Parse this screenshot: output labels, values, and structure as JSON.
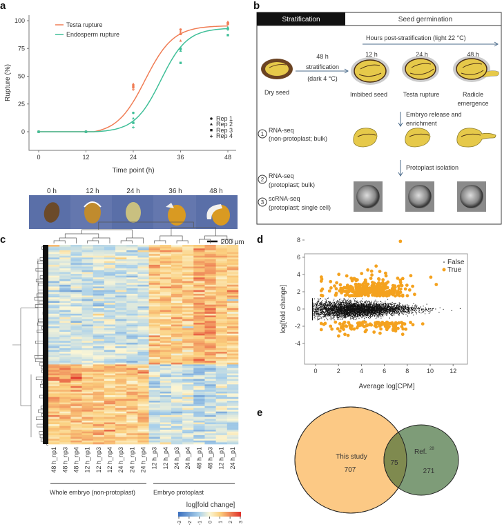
{
  "panels": {
    "a": {
      "label": "a",
      "chart": {
        "type": "line",
        "xlabel": "Time point (h)",
        "ylabel": "Rupture (%)",
        "x_ticks": [
          "0",
          "12",
          "24",
          "36",
          "48"
        ],
        "y_ticks": [
          "0",
          "25",
          "50",
          "75",
          "100"
        ],
        "legend": [
          "Testa rupture",
          "Endosperm rupture"
        ],
        "rep_legend": [
          "Rep 1",
          "Rep 2",
          "Rep 3",
          "Rep 4"
        ],
        "colors": {
          "testa": "#f07d55",
          "endosperm": "#3fbf98"
        }
      },
      "photo_labels": [
        "0 h",
        "12 h",
        "24 h",
        "36 h",
        "48 h"
      ],
      "scale_bar": "200 μm"
    },
    "b": {
      "label": "b",
      "header_stratification": "Stratification",
      "header_germination": "Seed germination",
      "hours_label": "Hours post-stratification (light 22 °C)",
      "strat_1": "48 h",
      "strat_2": "stratification",
      "strat_3": "(dark 4 °C)",
      "t12": "12 h",
      "t24": "24 h",
      "t48": "48 h",
      "dry_seed": "Dry seed",
      "imbibed": "Imbibed seed",
      "testa": "Testa rupture",
      "radicle_1": "Radicle",
      "radicle_2": "emergence",
      "embryo_1": "Embryo release and",
      "embryo_2": "enrichment",
      "protoplast_iso": "Protoplast isolation",
      "step1_num": "1",
      "step1_a": "RNA-seq",
      "step1_b": "(non-protoplast; bulk)",
      "step2_num": "2",
      "step2_a": "RNA-seq",
      "step2_b": "(protoplast; bulk)",
      "step3_num": "3",
      "step3_a": "scRNA-seq",
      "step3_b": "(protoplast; single cell)"
    },
    "c": {
      "label": "c",
      "columns": [
        "48 h_np1",
        "48 h_np3",
        "48 h_np4",
        "12 h_np1",
        "12 h_np3",
        "12 h_np4",
        "24 h_np3",
        "24 h_np1",
        "24 h_np4",
        "12 h_p3",
        "12 h_p4",
        "24 h_p3",
        "24 h_p4",
        "48 h_p1",
        "48 h_p3",
        "12 h_p1",
        "24 h_p1"
      ],
      "group1": "Whole embryo (non-protoplast)",
      "group2": "Embryo protoplast",
      "colorbar_title": "log[fold change]",
      "colorbar_ticks": [
        "-3",
        "-2",
        "-1",
        "0",
        "1",
        "2",
        "3"
      ]
    },
    "d": {
      "label": "d",
      "xlabel": "Average log[CPM]",
      "ylabel": "log[fold change]",
      "x_ticks": [
        "0",
        "2",
        "4",
        "6",
        "8",
        "10",
        "12"
      ],
      "y_ticks": [
        "-4",
        "-2",
        "0",
        "2",
        "4",
        "6",
        "8"
      ],
      "legend_false": "False",
      "legend_true": "True",
      "colors": {
        "false": "#111111",
        "true": "#f4a21f"
      }
    },
    "e": {
      "label": "e",
      "this_study": "This study",
      "this_study_count": "707",
      "overlap_count": "75",
      "ref": "Ref.",
      "ref_sup": "28",
      "ref_count": "271",
      "colors": {
        "this_study": "#fcc985",
        "ref": "#7e9c78",
        "overlap": "#7f8a4f"
      }
    }
  },
  "chart_data": [
    {
      "type": "line",
      "xlabel": "Time point (h)",
      "ylabel": "Rupture (%)",
      "xlim": [
        0,
        48
      ],
      "ylim": [
        -15,
        102
      ],
      "x": [
        0,
        12,
        24,
        36,
        48
      ],
      "series": [
        {
          "name": "Testa rupture",
          "replicates": [
            [
              0,
              0,
              0,
              0
            ],
            [
              0,
              0,
              0,
              0
            ],
            [
              42,
              43,
              40,
              38
            ],
            [
              92,
              82,
              88,
              90
            ],
            [
              98,
              99,
              97,
              98
            ]
          ]
        },
        {
          "name": "Endosperm rupture",
          "replicates": [
            [
              0,
              0,
              0,
              0
            ],
            [
              0,
              0,
              0,
              0
            ],
            [
              17,
              12,
              8,
              4
            ],
            [
              75,
              73,
              62,
              74
            ],
            [
              93,
              94,
              87,
              92
            ]
          ]
        }
      ]
    },
    {
      "type": "scatter",
      "xlabel": "Average log[CPM]",
      "ylabel": "log[fold change]",
      "xlim": [
        -0.5,
        13
      ],
      "ylim": [
        -4.4,
        8.3
      ],
      "series": [
        {
          "name": "False"
        },
        {
          "name": "True"
        }
      ]
    },
    {
      "type": "heatmap",
      "colorbar_range": [
        -3,
        3
      ]
    }
  ]
}
